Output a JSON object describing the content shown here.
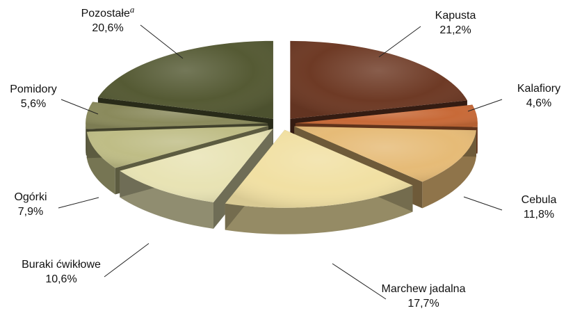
{
  "chart_data": {
    "type": "pie",
    "title": "",
    "slices": [
      {
        "label": "Kapusta",
        "value": 21.2,
        "value_text": "21,2%",
        "color": "#6e3a25"
      },
      {
        "label": "Kalafiory",
        "value": 4.6,
        "value_text": "4,6%",
        "color": "#c86a38"
      },
      {
        "label": "Cebula",
        "value": 11.8,
        "value_text": "11,8%",
        "color": "#e6bb77"
      },
      {
        "label": "Marchew jadalna",
        "value": 17.7,
        "value_text": "17,7%",
        "color": "#f1e0a3"
      },
      {
        "label": "Buraki ćwikłowe",
        "value": 10.6,
        "value_text": "10,6%",
        "color": "#e8e3b4"
      },
      {
        "label": "Ogórki",
        "value": 7.9,
        "value_text": "7,9%",
        "color": "#bfbd86"
      },
      {
        "label": "Pomidory",
        "value": 5.6,
        "value_text": "5,6%",
        "color": "#8a8a5c"
      },
      {
        "label": "Pozostałe",
        "label_superscript": "a",
        "value": 20.6,
        "value_text": "20,6%",
        "color": "#555a34"
      }
    ]
  }
}
